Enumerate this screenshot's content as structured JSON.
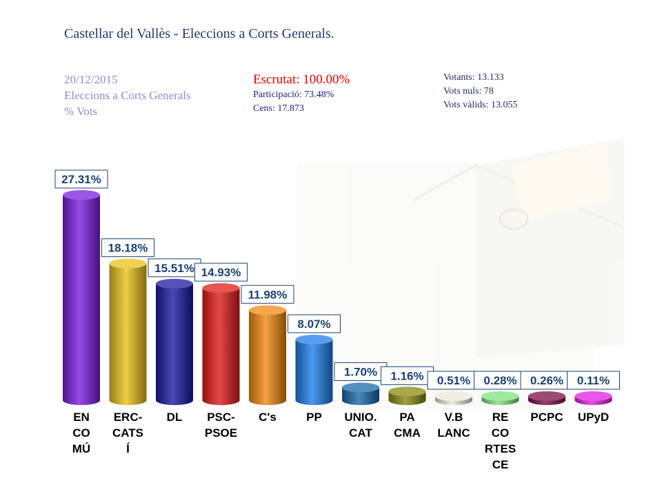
{
  "header": {
    "title": "Castellar del Vallès - Eleccions a Corts Generals.",
    "date": "20/12/2015",
    "election": "Eleccions a Corts Generals",
    "metric": "% Vots",
    "scrutiny": "Escrutat: 100.00%",
    "participation": "Participació: 73.48%",
    "census": "Cens: 17.873",
    "voters": "Votants: 13.133",
    "null_votes": "Vots nuls: 78",
    "valid_votes": "Vots vàlids: 13.055"
  },
  "chart_data": {
    "type": "bar",
    "categories": [
      [
        "EN",
        "CO",
        "MÚ"
      ],
      [
        "ERC-",
        "CATS",
        "Í"
      ],
      [
        "DL"
      ],
      [
        "PSC-",
        "PSOE"
      ],
      [
        "C's"
      ],
      [
        "PP"
      ],
      [
        "UNIO.",
        "CAT"
      ],
      [
        "PA",
        "CMA"
      ],
      [
        "V.B",
        "LANC"
      ],
      [
        "RE",
        "CO",
        "RTES",
        "CE"
      ],
      [
        "PCPC"
      ],
      [
        "UPyD"
      ]
    ],
    "values": [
      27.31,
      18.18,
      15.51,
      14.93,
      11.98,
      8.07,
      1.7,
      1.16,
      0.51,
      0.28,
      0.26,
      0.11
    ],
    "value_labels": [
      "27.31%",
      "18.18%",
      "15.51%",
      "14.93%",
      "11.98%",
      "8.07%",
      "1.70%",
      "1.16%",
      "0.51%",
      "0.28%",
      "0.26%",
      "0.11%"
    ],
    "colors": [
      "#7a1ee0",
      "#e8c21a",
      "#1a1aa0",
      "#e01a1a",
      "#f08a10",
      "#1e7fe8",
      "#1a6aa8",
      "#8a8a10",
      "#e8e8d8",
      "#80e080",
      "#7a1040",
      "#e020e0"
    ],
    "ylim": [
      0,
      28
    ],
    "grid": false,
    "legend": "none"
  }
}
